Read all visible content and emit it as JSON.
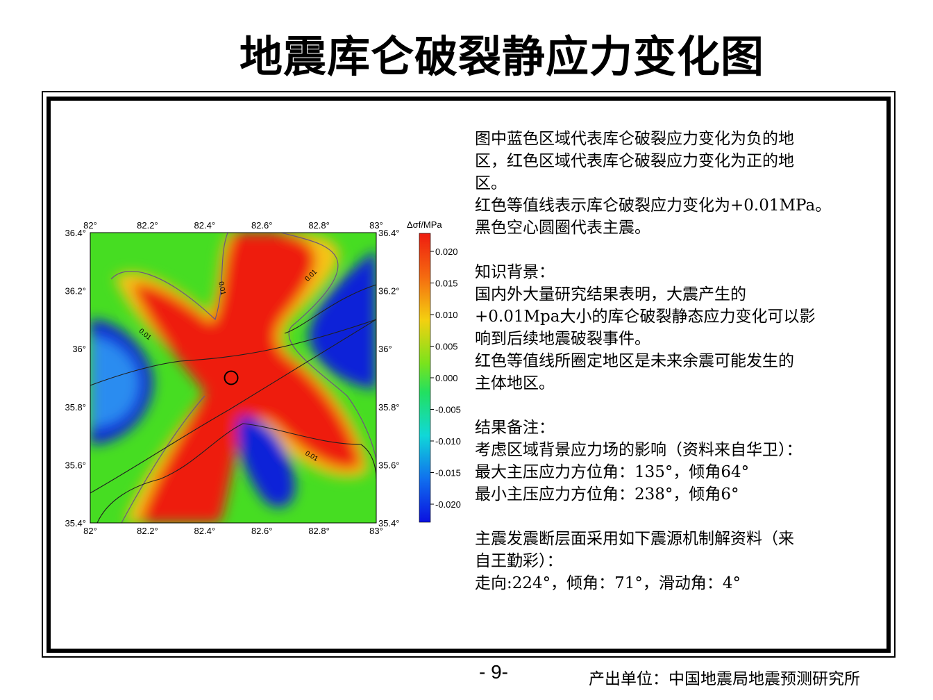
{
  "title": "地震库仑破裂静应力变化图",
  "map": {
    "lon_ticks": [
      "82°",
      "82.2°",
      "82.4°",
      "82.6°",
      "82.8°",
      "83°"
    ],
    "lat_ticks": [
      "36.4°",
      "36.2°",
      "36°",
      "35.8°",
      "35.6°",
      "35.4°"
    ],
    "contour_label": "0.01",
    "colorbar": {
      "title": "Δσf/MPa",
      "ticks": [
        "0.020",
        "0.015",
        "0.010",
        "0.005",
        "0.000",
        "-0.005",
        "-0.010",
        "-0.015",
        "-0.020"
      ]
    },
    "colors": {
      "positive": "#ee1c10",
      "negative": "#0a22d8",
      "zero": "#44dd22"
    }
  },
  "description": {
    "lines": [
      "图中蓝色区域代表库仑破裂应力变化为负的地",
      "区，红色区域代表库仑破裂应力变化为正的地",
      "区。",
      "红色等值线表示库仑破裂应力变化为+0.01MPa。",
      "黑色空心圆圈代表主震。",
      "",
      "知识背景：",
      "国内外大量研究结果表明，大震产生的",
      "+0.01Mpa大小的库仑破裂静态应力变化可以影",
      "响到后续地震破裂事件。",
      "红色等值线所圈定地区是未来余震可能发生的",
      "主体地区。",
      "",
      "结果备注：",
      "考虑区域背景应力场的影响（资料来自华卫）：",
      "最大主压应力方位角：135°，倾角64°",
      "最小主压应力方位角：238°，倾角6°",
      "",
      "主震发震断层面采用如下震源机制解资料（来",
      "自王勤彩）：",
      "走向:224°，倾角：71°，滑动角：4°"
    ]
  },
  "footer": {
    "page_number": "- 9-",
    "producer": "产出单位：中国地震局地震预测研究所"
  }
}
